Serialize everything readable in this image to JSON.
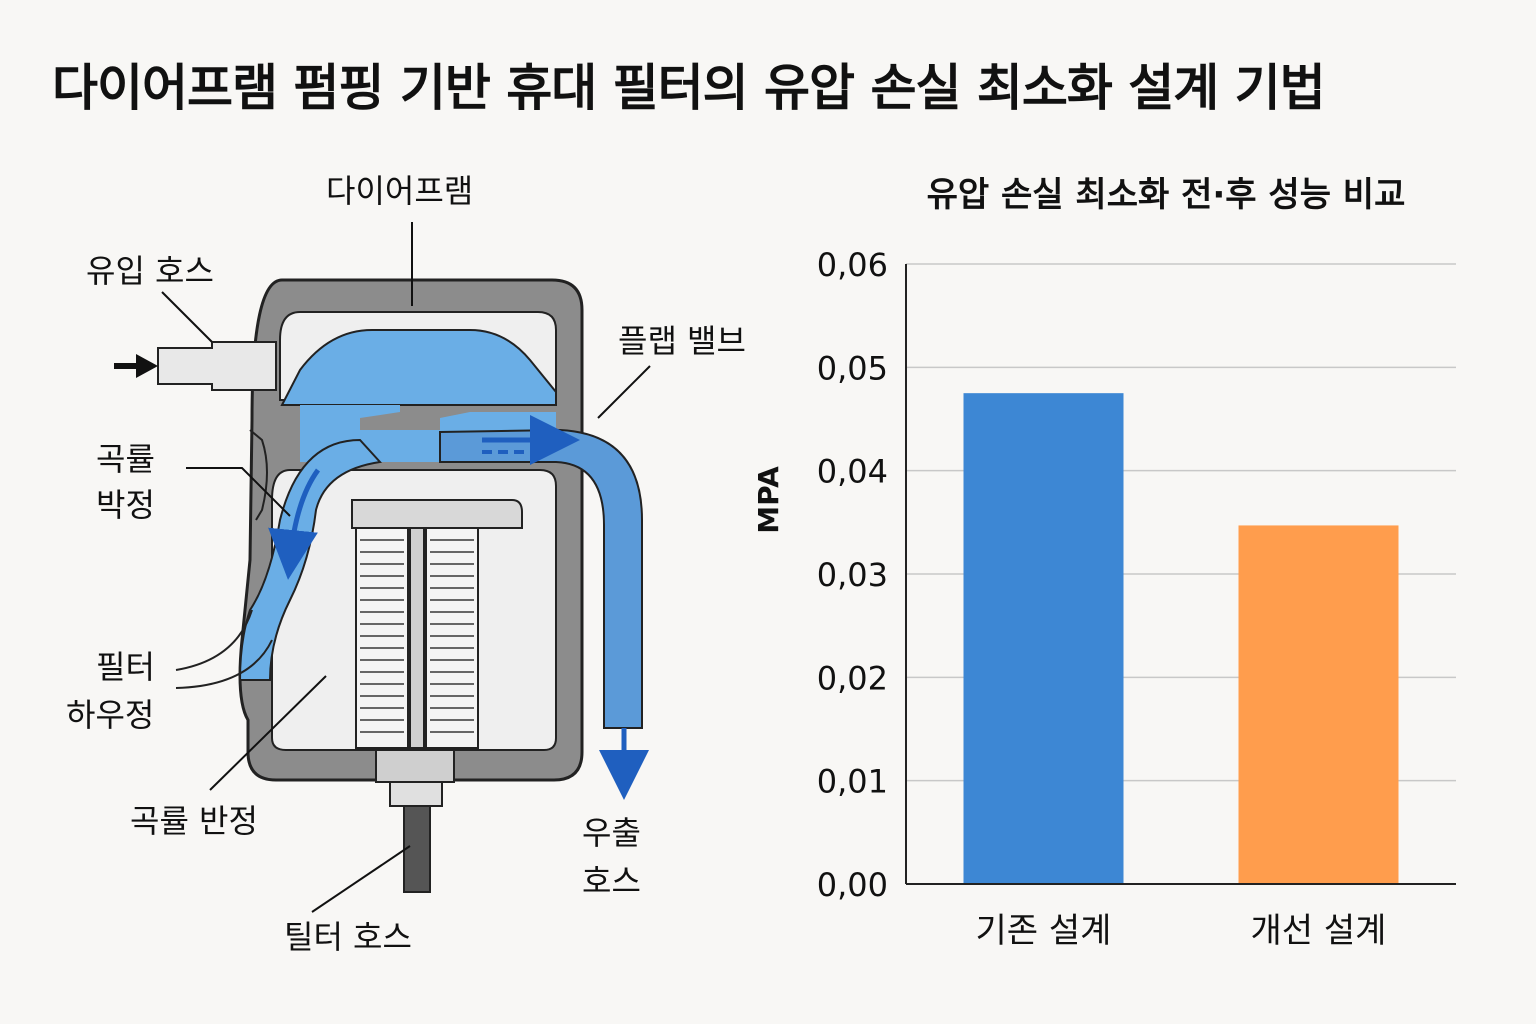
{
  "title": "다이어프램 펌핑 기반 휴대 필터의 유압 손실 최소화 설계 기법",
  "diagram": {
    "labels": {
      "diaphragm": "다이어프램",
      "inlet_hose": "유입 호스",
      "flap_valve": "플랩 밸브",
      "groove_plate_1_line1": "곡률",
      "groove_plate_1_line2": "박정",
      "filter_housing_line1": "필터",
      "filter_housing_line2": "하우정",
      "groove_half": "곡률 반정",
      "filter_hose": "틸터 호스",
      "outlet_line1": "우출",
      "outlet_line2": "호스"
    },
    "colors": {
      "housing": "#8c8c8c",
      "water": "#6aaee6",
      "flow_arrow": "#1f5fbf",
      "chamber": "#efefef"
    }
  },
  "chart_data": {
    "type": "bar",
    "title": "유압 손실 최소화 전·후 성능 비교",
    "categories": [
      "기존 설계",
      "개선 설계"
    ],
    "values": [
      0.0475,
      0.0347
    ],
    "colors": [
      "#3d87d4",
      "#ff9d4d"
    ],
    "ylabel": "MPA",
    "xlabel": "",
    "ylim": [
      0,
      0.06
    ],
    "yticks": [
      "0,00",
      "0,01",
      "0,02",
      "0,03",
      "0,04",
      "0,05",
      "0,06"
    ],
    "grid": true
  }
}
